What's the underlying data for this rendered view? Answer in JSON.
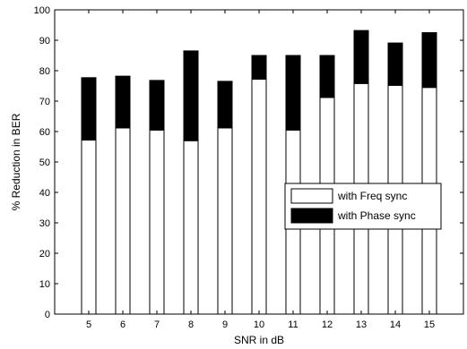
{
  "chart_data": {
    "type": "bar",
    "stacked": true,
    "categories": [
      "5",
      "6",
      "7",
      "8",
      "9",
      "10",
      "11",
      "12",
      "13",
      "14",
      "15"
    ],
    "series": [
      {
        "name": "with Freq sync",
        "color": "#ffffff",
        "values": [
          57.2,
          61.2,
          60.5,
          57.0,
          61.2,
          77.2,
          60.5,
          71.2,
          75.8,
          75.2,
          74.5
        ]
      },
      {
        "name": "with Phase sync",
        "color": "#000000",
        "values": [
          20.5,
          17.0,
          16.3,
          29.5,
          15.3,
          7.8,
          24.5,
          13.8,
          17.4,
          13.9,
          18.0
        ]
      }
    ],
    "xlabel": "SNR in dB",
    "ylabel": "% Reduction in BER",
    "ylim": [
      0,
      100
    ],
    "yticks": [
      0,
      10,
      20,
      30,
      40,
      50,
      60,
      70,
      80,
      90,
      100
    ],
    "grid": false,
    "legend_position": "center-right"
  }
}
